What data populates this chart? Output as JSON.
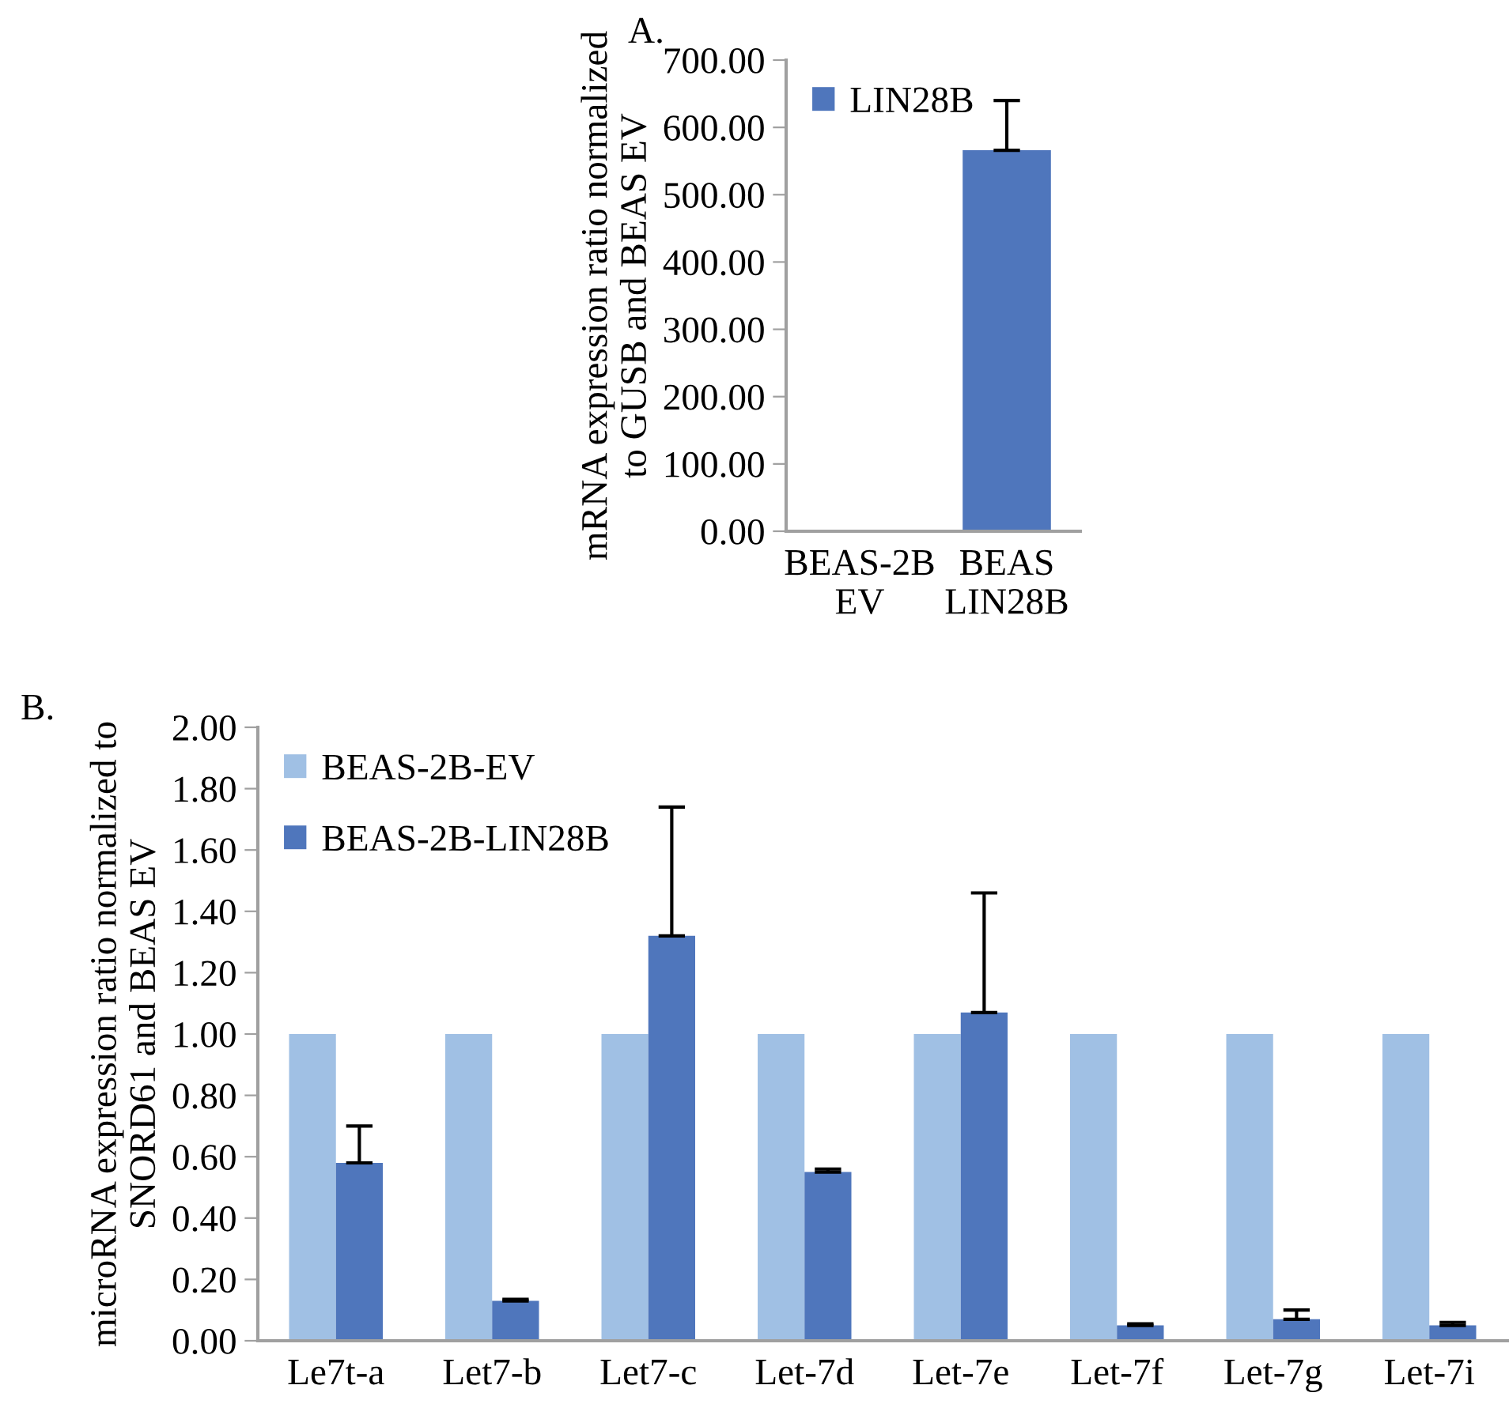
{
  "chart_data": [
    {
      "type": "bar",
      "title": "A.",
      "ylabel": "mRNA expression ratio normalized\nto GUSB and BEAS EV",
      "categories": [
        "BEAS-2B\nEV",
        "BEAS\nLIN28B"
      ],
      "series": [
        {
          "name": "LIN28B",
          "color": "#4f76bc",
          "values": [
            2,
            566
          ],
          "errors": [
            null,
            [
              566,
              640
            ]
          ]
        }
      ],
      "ylim": [
        0,
        700
      ],
      "yticks": [
        {
          "value": 0,
          "label": "0.00"
        },
        {
          "value": 100,
          "label": "100.00"
        },
        {
          "value": 200,
          "label": "200.00"
        },
        {
          "value": 300,
          "label": "300.00"
        },
        {
          "value": 400,
          "label": "400.00"
        },
        {
          "value": 500,
          "label": "500.00"
        },
        {
          "value": 600,
          "label": "600.00"
        },
        {
          "value": 700,
          "label": "700.00"
        }
      ],
      "grid": false,
      "legend": "top left"
    },
    {
      "type": "bar",
      "title": "B.",
      "ylabel": "microRNA expression ratio normalized to\nSNORD61 and BEAS EV",
      "categories": [
        "Le7t-a",
        "Let7-b",
        "Let7-c",
        "Let-7d",
        "Let-7e",
        "Let-7f",
        "Let-7g",
        "Let-7i"
      ],
      "series": [
        {
          "name": "BEAS-2B-EV",
          "color": "#a0c0e4",
          "values": [
            1,
            1,
            1,
            1,
            1,
            1,
            1,
            1
          ]
        },
        {
          "name": "BEAS-2B-LIN28B",
          "color": "#4f76bc",
          "values": [
            0.58,
            0.13,
            1.32,
            0.55,
            1.07,
            0.05,
            0.07,
            0.05
          ],
          "errors": [
            [
              0.58,
              0.7
            ],
            [
              0.13,
              0.135
            ],
            [
              1.32,
              1.74
            ],
            [
              0.55,
              0.56
            ],
            [
              1.07,
              1.46
            ],
            [
              0.05,
              0.055
            ],
            [
              0.07,
              0.1
            ],
            [
              0.05,
              0.06
            ]
          ]
        }
      ],
      "ylim": [
        0,
        2
      ],
      "yticks": [
        {
          "value": 0,
          "label": "0.00"
        },
        {
          "value": 0.2,
          "label": "0.20"
        },
        {
          "value": 0.4,
          "label": "0.40"
        },
        {
          "value": 0.6,
          "label": "0.60"
        },
        {
          "value": 0.8,
          "label": "0.80"
        },
        {
          "value": 1.0,
          "label": "1.00"
        },
        {
          "value": 1.2,
          "label": "1.20"
        },
        {
          "value": 1.4,
          "label": "1.40"
        },
        {
          "value": 1.6,
          "label": "1.60"
        },
        {
          "value": 1.8,
          "label": "1.80"
        },
        {
          "value": 2.0,
          "label": "2.00"
        }
      ],
      "grid": false,
      "legend": "top left"
    }
  ]
}
